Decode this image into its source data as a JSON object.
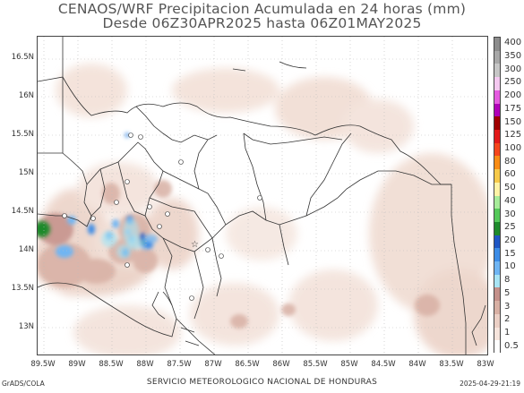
{
  "title": {
    "line1": "CENAOS/WRF Precipitacion Acumulada en 24 horas (mm)",
    "line2": "Desde 06Z30APR2025 hasta 06Z01MAY2025"
  },
  "map": {
    "lat_labels": [
      "16.5N",
      "16N",
      "15.5N",
      "15N",
      "14.5N",
      "14N",
      "13.5N",
      "13N"
    ],
    "lon_labels": [
      "89.5W",
      "89W",
      "88.5W",
      "88W",
      "87.5W",
      "87W",
      "86.5W",
      "86W",
      "85.5W",
      "85W",
      "84.5W",
      "84W",
      "83.5W",
      "83W"
    ]
  },
  "colorbar": {
    "labels": [
      "400",
      "350",
      "300",
      "250",
      "200",
      "175",
      "150",
      "125",
      "100",
      "80",
      "60",
      "50",
      "40",
      "30",
      "25",
      "20",
      "15",
      "10",
      "8",
      "5",
      "3",
      "2",
      "1",
      "0.5"
    ],
    "colors": [
      "#8c8c8c",
      "#a8a8a8",
      "#c6c6c6",
      "#f4c8f0",
      "#e55be0",
      "#b000b8",
      "#a00000",
      "#e21a1a",
      "#f5461c",
      "#f98c15",
      "#f6c94a",
      "#fff3a6",
      "#a7ec9a",
      "#55c95a",
      "#1d8a2b",
      "#1e56c4",
      "#3c8ce6",
      "#6fb5f3",
      "#a8e4f4",
      "#c4908a",
      "#d8b0a4",
      "#ebcfc5",
      "#f6e4dc",
      "#ffffff"
    ]
  },
  "footer": {
    "credit": "GrADS/COLA",
    "agency": "SERVICIO METEOROLOGICO NACIONAL DE HONDURAS",
    "timestamp": "2025-04-29-21:19"
  }
}
